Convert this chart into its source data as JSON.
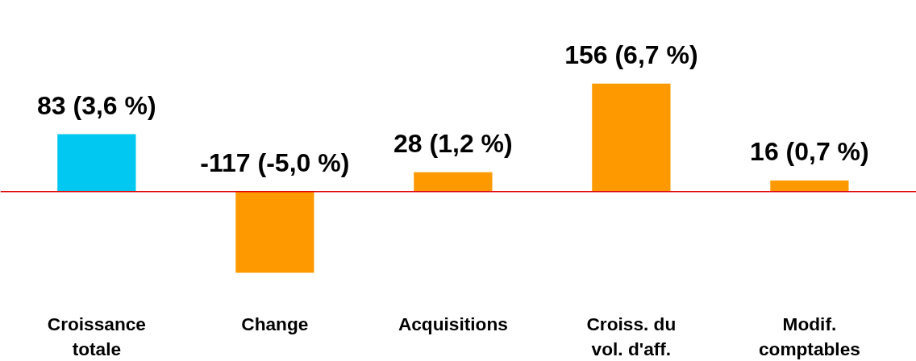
{
  "chart_data": {
    "type": "bar",
    "categories": [
      "Croissance\ntotale",
      "Change",
      "Acquisitions",
      "Croiss. du\nvol. d'aff.",
      "Modif.\ncomptables"
    ],
    "values": [
      83,
      -117,
      28,
      156,
      16
    ],
    "colors": [
      "#00c8f0",
      "#ff9900",
      "#ff9900",
      "#ff9900",
      "#ff9900"
    ],
    "value_labels": [
      "83 (3,6 %)",
      "-117 (-5,0 %)",
      "28 (1,2 %)",
      "156 (6,7 %)",
      "16 (0,7 %)"
    ],
    "ref_lines": [
      {
        "axis": "y",
        "value": 0,
        "color": "#e00000"
      }
    ],
    "grid": false
  }
}
